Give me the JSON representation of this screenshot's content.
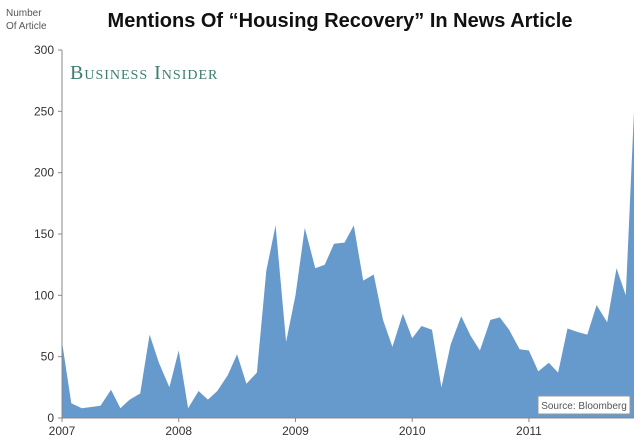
{
  "chart_data": {
    "type": "area",
    "title": "Mentions Of “Housing Recovery” In News Article",
    "ylabel_lines": [
      "Number",
      "Of Article"
    ],
    "xlabel": "",
    "ylim": [
      0,
      300
    ],
    "xlim": [
      2007.0,
      2011.9
    ],
    "yticks": [
      0,
      50,
      100,
      150,
      200,
      250,
      300
    ],
    "xticks": [
      2007,
      2008,
      2009,
      2010,
      2011
    ],
    "grid": false,
    "series": [
      {
        "color": "#6699cc",
        "x": [
          2007.0,
          2007.08,
          2007.17,
          2007.25,
          2007.33,
          2007.42,
          2007.5,
          2007.58,
          2007.67,
          2007.75,
          2007.83,
          2007.92,
          2008.0,
          2008.08,
          2008.17,
          2008.25,
          2008.33,
          2008.42,
          2008.5,
          2008.58,
          2008.67,
          2008.75,
          2008.83,
          2008.92,
          2009.0,
          2009.08,
          2009.17,
          2009.25,
          2009.33,
          2009.42,
          2009.5,
          2009.58,
          2009.67,
          2009.75,
          2009.83,
          2009.92,
          2010.0,
          2010.08,
          2010.17,
          2010.25,
          2010.33,
          2010.42,
          2010.5,
          2010.58,
          2010.67,
          2010.75,
          2010.83,
          2010.92,
          2011.0,
          2011.08,
          2011.17,
          2011.25,
          2011.33,
          2011.42,
          2011.5,
          2011.58,
          2011.67,
          2011.75,
          2011.83,
          2011.9
        ],
        "values": [
          62,
          12,
          8,
          9,
          10,
          23,
          8,
          15,
          20,
          68,
          45,
          25,
          55,
          8,
          22,
          15,
          22,
          35,
          52,
          28,
          37,
          120,
          157,
          62,
          100,
          155,
          122,
          125,
          142,
          143,
          157,
          112,
          117,
          80,
          58,
          85,
          65,
          75,
          72,
          25,
          60,
          83,
          67,
          55,
          80,
          82,
          72,
          56,
          55,
          38,
          45,
          37,
          73,
          70,
          68,
          92,
          78,
          122,
          100,
          250
        ]
      }
    ],
    "brand": "Business Insider",
    "source": "Source: Bloomberg"
  }
}
